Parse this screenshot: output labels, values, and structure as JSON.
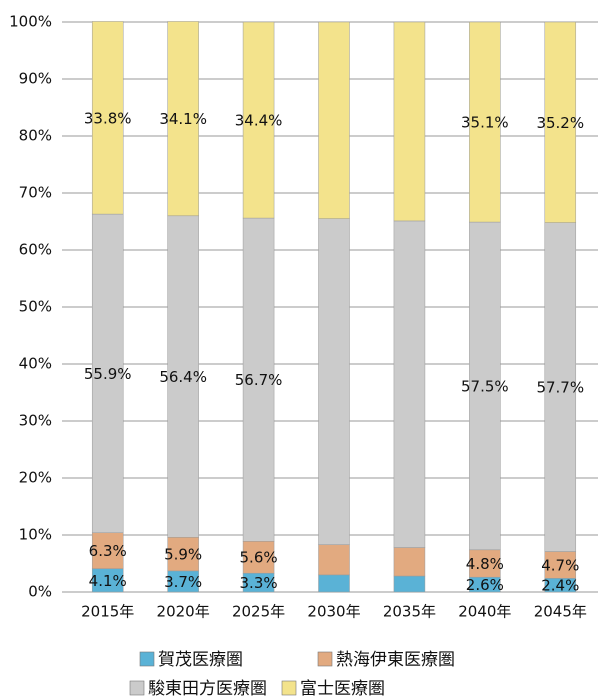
{
  "chart_data": {
    "type": "stacked_bar",
    "categories": [
      "2015年",
      "2020年",
      "2025年",
      "2030年",
      "2035年",
      "2040年",
      "2045年"
    ],
    "series": [
      {
        "name": "賀茂医療圏",
        "color": "#5ab2d6",
        "values": [
          4.1,
          3.7,
          3.3,
          3.0,
          2.8,
          2.6,
          2.4
        ],
        "value_labels": [
          "4.1%",
          "3.7%",
          "3.3%",
          null,
          null,
          "2.6%",
          "2.4%"
        ]
      },
      {
        "name": "熱海伊東医療圏",
        "color": "#e2aa80",
        "values": [
          6.3,
          5.9,
          5.6,
          5.3,
          5.0,
          4.8,
          4.7
        ],
        "value_labels": [
          "6.3%",
          "5.9%",
          "5.6%",
          null,
          null,
          "4.8%",
          "4.7%"
        ]
      },
      {
        "name": "駿東田方医療圏",
        "color": "#cbcbcb",
        "values": [
          55.9,
          56.4,
          56.7,
          57.2,
          57.3,
          57.5,
          57.7
        ],
        "value_labels": [
          "55.9%",
          "56.4%",
          "56.7%",
          null,
          null,
          "57.5%",
          "57.7%"
        ]
      },
      {
        "name": "富士医療圏",
        "color": "#f3e38c",
        "values": [
          33.8,
          34.1,
          34.4,
          34.5,
          34.9,
          35.1,
          35.2
        ],
        "value_labels": [
          "33.8%",
          "34.1%",
          "34.4%",
          null,
          null,
          "35.1%",
          "35.2%"
        ]
      }
    ],
    "ylim": [
      0,
      100
    ],
    "yticks": [
      {
        "value": 0,
        "label": "0%"
      },
      {
        "value": 10,
        "label": "10%"
      },
      {
        "value": 20,
        "label": "20%"
      },
      {
        "value": 30,
        "label": "30%"
      },
      {
        "value": 40,
        "label": "40%"
      },
      {
        "value": 50,
        "label": "50%"
      },
      {
        "value": 60,
        "label": "60%"
      },
      {
        "value": 70,
        "label": "70%"
      },
      {
        "value": 80,
        "label": "80%"
      },
      {
        "value": 90,
        "label": "90%"
      },
      {
        "value": 100,
        "label": "100%"
      }
    ],
    "grid": true
  }
}
